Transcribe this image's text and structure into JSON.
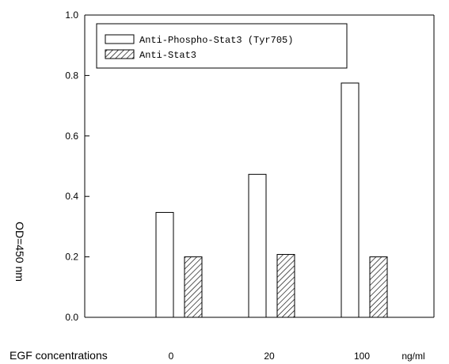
{
  "chart_data": {
    "type": "bar",
    "categories": [
      "0",
      "20",
      "100"
    ],
    "series": [
      {
        "name": "Anti-Phospho-Stat3 (Tyr705)",
        "values": [
          0.347,
          0.473,
          0.775
        ],
        "pattern": "open"
      },
      {
        "name": "Anti-Stat3",
        "values": [
          0.2,
          0.208,
          0.2
        ],
        "pattern": "hatched"
      }
    ],
    "ylabel": "OD=450 nm",
    "xlabel": "EGF concentrations",
    "x_unit": "ng/ml",
    "ylim": [
      0,
      1.0
    ],
    "yticks": [
      "0.0",
      "0.2",
      "0.4",
      "0.6",
      "0.8",
      "1.0"
    ],
    "legend_position": "top-left",
    "grid": false
  }
}
